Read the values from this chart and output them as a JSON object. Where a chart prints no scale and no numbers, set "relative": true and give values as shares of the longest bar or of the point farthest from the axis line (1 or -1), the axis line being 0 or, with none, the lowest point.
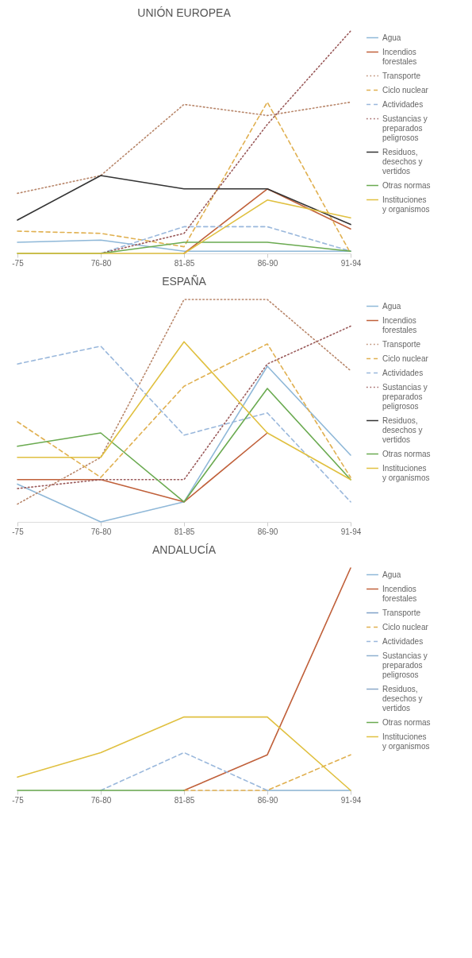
{
  "chart_data": [
    {
      "type": "line",
      "title": "UNIÓN EUROPEA",
      "relative": true,
      "legend": "right",
      "categories": [
        "-75",
        "76-80",
        "81-85",
        "86-90",
        "91-94"
      ],
      "series": [
        {
          "name": "Agua",
          "color": "#8fb8d8",
          "line_style": "solid",
          "values": [
            0.05,
            0.06,
            0.01,
            0.01,
            0.01
          ]
        },
        {
          "name": "Incendios forestales",
          "color": "#c0603a",
          "line_style": "solid",
          "values": [
            null,
            null,
            0,
            0.29,
            0.11
          ]
        },
        {
          "name": "Transporte",
          "color": "#b8866a",
          "line_style": "dotted",
          "values": [
            0.27,
            0.35,
            0.67,
            0.62,
            0.68
          ]
        },
        {
          "name": "Ciclo nuclear",
          "color": "#e0b050",
          "line_style": "dashed",
          "values": [
            0.1,
            0.09,
            0.03,
            0.68,
            0
          ]
        },
        {
          "name": "Actividades",
          "color": "#9ab8dc",
          "line_style": "dashed",
          "values": [
            null,
            0,
            0.12,
            0.12,
            0.01
          ]
        },
        {
          "name": "Sustancias y preparados peligrosos",
          "color": "#9a5a5a",
          "line_style": "dotted",
          "values": [
            null,
            0,
            0.09,
            0.58,
            1
          ]
        },
        {
          "name": "Residuos, desechos y vertidos",
          "color": "#333333",
          "line_style": "solid",
          "values": [
            0.15,
            0.35,
            0.29,
            0.29,
            0.13
          ]
        },
        {
          "name": "Otras normas",
          "color": "#6aaa50",
          "line_style": "solid",
          "values": [
            0,
            0,
            0.05,
            0.05,
            0.01
          ]
        },
        {
          "name": "Instituciones y organismos",
          "color": "#e0c040",
          "line_style": "solid",
          "values": [
            0,
            0,
            0,
            0.24,
            0.16
          ]
        }
      ]
    },
    {
      "type": "line",
      "title": "ESPAÑA",
      "relative": true,
      "legend": "right",
      "categories": [
        "-75",
        "76-80",
        "81-85",
        "86-90",
        "91-94"
      ],
      "series": [
        {
          "name": "Agua",
          "color": "#8fb8d8",
          "line_style": "solid",
          "values": [
            0.17,
            0,
            0.09,
            0.7,
            0.3
          ]
        },
        {
          "name": "Incendios forestales",
          "color": "#c0603a",
          "line_style": "solid",
          "values": [
            0.19,
            0.19,
            0.09,
            0.4,
            null
          ]
        },
        {
          "name": "Transporte",
          "color": "#b8866a",
          "line_style": "dotted",
          "values": [
            0.08,
            0.29,
            1,
            1,
            0.68
          ]
        },
        {
          "name": "Ciclo nuclear",
          "color": "#e0b050",
          "line_style": "dashed",
          "values": [
            0.45,
            0.2,
            0.61,
            0.8,
            0.2
          ]
        },
        {
          "name": "Actividades",
          "color": "#9ab8dc",
          "line_style": "dashed",
          "values": [
            0.71,
            0.79,
            0.39,
            0.49,
            0.09
          ]
        },
        {
          "name": "Sustancias y preparados peligrosos",
          "color": "#9a5a5a",
          "line_style": "dotted",
          "values": [
            0.15,
            0.19,
            0.19,
            0.71,
            0.88
          ]
        },
        {
          "name": "Residuos, desechos y vertidos",
          "color": "#333333",
          "line_style": "solid",
          "values": [
            null,
            null,
            null,
            null,
            null
          ]
        },
        {
          "name": "Otras normas",
          "color": "#6aaa50",
          "line_style": "solid",
          "values": [
            0.34,
            0.4,
            0.09,
            0.6,
            0.19
          ]
        },
        {
          "name": "Instituciones y organismos",
          "color": "#e0c040",
          "line_style": "solid",
          "values": [
            0.29,
            0.29,
            0.81,
            0.4,
            0.19
          ]
        }
      ]
    },
    {
      "type": "line",
      "title": "ANDALUCÍA",
      "relative": true,
      "legend": "right",
      "categories": [
        "-75",
        "76-80",
        "81-85",
        "86-90",
        "91-94"
      ],
      "series": [
        {
          "name": "Agua",
          "color": "#8fb8d8",
          "line_style": "solid",
          "values": [
            null,
            null,
            null,
            0,
            0
          ]
        },
        {
          "name": "Incendios forestales",
          "color": "#c0603a",
          "line_style": "solid",
          "values": [
            null,
            null,
            0,
            0.16,
            1
          ]
        },
        {
          "name": "Transporte",
          "color": "#7fa0c8",
          "line_style": "solid",
          "values": [
            null,
            null,
            null,
            null,
            null
          ]
        },
        {
          "name": "Ciclo nuclear",
          "color": "#e0b050",
          "line_style": "dashed",
          "values": [
            null,
            null,
            0,
            0,
            0.16
          ]
        },
        {
          "name": "Actividades",
          "color": "#9ab8dc",
          "line_style": "dashed",
          "values": [
            null,
            0,
            0.17,
            0,
            null
          ]
        },
        {
          "name": "Sustancias y preparados peligrosos",
          "color": "#8fb0d0",
          "line_style": "solid",
          "values": [
            null,
            null,
            null,
            null,
            null
          ]
        },
        {
          "name": "Residuos, desechos y vertidos",
          "color": "#8aa8c8",
          "line_style": "solid",
          "values": [
            null,
            null,
            null,
            null,
            null
          ]
        },
        {
          "name": "Otras normas",
          "color": "#6aaa50",
          "line_style": "solid",
          "values": [
            0,
            0,
            0,
            null,
            null
          ]
        },
        {
          "name": "Instituciones y organismos",
          "color": "#e0c040",
          "line_style": "solid",
          "values": [
            0.06,
            0.17,
            0.33,
            0.33,
            0
          ]
        }
      ]
    }
  ]
}
